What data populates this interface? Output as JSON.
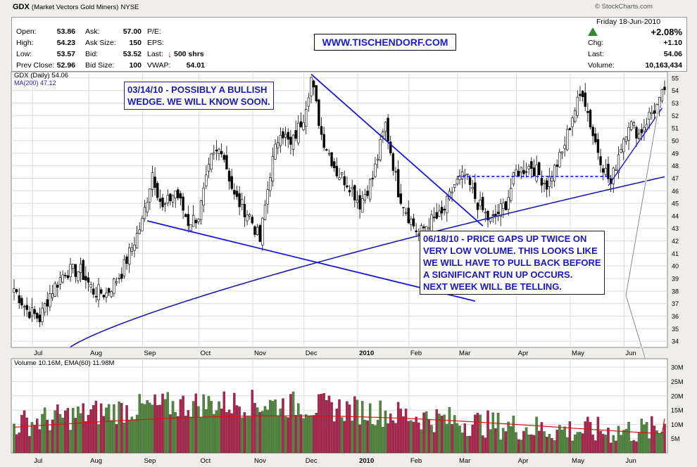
{
  "header": {
    "ticker": "GDX",
    "name": "(Market Vectors Gold Miners)",
    "exchange": "NYSE",
    "date": "Friday 18-Jun-2010",
    "watermark": "© StockCharts.com",
    "pct_change": "+2.08%",
    "quote": {
      "open_label": "Open:",
      "open": "53.86",
      "high_label": "High:",
      "high": "54.23",
      "low_label": "Low:",
      "low": "53.57",
      "prev_label": "Prev Close:",
      "prev": "52.96",
      "ask_label": "Ask:",
      "ask": "57.00",
      "asksize_label": "Ask Size:",
      "asksize": "150",
      "bid_label": "Bid:",
      "bid": "53.52",
      "bidsize_label": "Bid Size:",
      "bidsize": "100",
      "pe_label": "P/E:",
      "eps_label": "EPS:",
      "last_label": "Last:",
      "last_shrs": "500 shrs",
      "vwap_label": "VWAP:",
      "vwap": "54.01",
      "chg_label": "Chg:",
      "chg": "+1.10",
      "last2_label": "Last:",
      "last2": "54.06",
      "volume_label": "Volume:",
      "volume": "10,163,434"
    }
  },
  "url_box": "WWW.TISCHENDORF.COM",
  "notes": {
    "note1_line1": "03/14/10 - POSSIBLY A BULLISH",
    "note1_line2": "WEDGE. WE WILL KNOW SOON.",
    "note2_line1": "06/18/10 - PRICE GAPS UP TWICE ON",
    "note2_line2": "VERY LOW VOLUME. THIS LOOKS LIKE",
    "note2_line3": "WE WILL HAVE TO PULL BACK BEFORE",
    "note2_line4": "A SIGNIFICANT RUN UP OCCURS.",
    "note2_line5": "NEXT WEEK WILL BE TELLING."
  },
  "colors": {
    "background": "#efeee8",
    "plot_bg": "#ffffff",
    "grid": "#dcdcdc",
    "ma_line": "#1c1cb8",
    "trend_line": "#1515e6",
    "volume_up": "#4f8a3a",
    "volume_down": "#b3204c",
    "ema_line": "#e01010",
    "up_arrow": "#2e8b2e",
    "down_arrow": "#c00000"
  },
  "chart_data": [
    {
      "type": "candlestick",
      "title": "GDX (Daily) 54.06",
      "legend": [
        "MA(200) 47.12"
      ],
      "legend_placement": "top-left",
      "x_ticks": [
        "Jul",
        "Aug",
        "Sep",
        "Oct",
        "Nov",
        "Dec",
        "2010",
        "Feb",
        "Mar",
        "Apr",
        "May",
        "Jun"
      ],
      "ylim": [
        33.5,
        55.5
      ],
      "y_ticks": [
        34,
        35,
        36,
        37,
        38,
        39,
        40,
        41,
        42,
        43,
        44,
        45,
        46,
        47,
        48,
        49,
        50,
        51,
        52,
        53,
        54,
        55
      ],
      "grid": true,
      "approx_monthly_close": [
        {
          "month": "Jul 2009",
          "close": 38.5
        },
        {
          "month": "Aug 2009",
          "close": 38.0
        },
        {
          "month": "Sep 2009",
          "close": 46.5
        },
        {
          "month": "Oct 2009",
          "close": 45.0
        },
        {
          "month": "Nov 2009",
          "close": 50.5
        },
        {
          "month": "Dec 2009",
          "close": 46.3
        },
        {
          "month": "Jan 2010",
          "close": 43.5
        },
        {
          "month": "Feb 2010",
          "close": 44.8
        },
        {
          "month": "Mar 2010",
          "close": 44.5
        },
        {
          "month": "Apr 2010",
          "close": 49.0
        },
        {
          "month": "May 2010",
          "close": 50.0
        },
        {
          "month": "Jun 2010",
          "close": 54.06
        }
      ],
      "ma200_last": 47.12,
      "annotations": [
        "descending trendline from Dec 2009 high",
        "lower wedge line from Sep 2009",
        "dashed resistance near 47",
        "ascending support line into June 2010"
      ]
    },
    {
      "type": "bar",
      "title": "Volume 10.16M, EMA(60) 11.98M",
      "y_ticks": [
        "5M",
        "10M",
        "15M",
        "20M",
        "25M",
        "30M"
      ],
      "ylim": [
        0,
        33
      ],
      "unit": "M",
      "last_volume": 10.16,
      "ema60_last": 11.98,
      "x_ticks": [
        "Jul",
        "Aug",
        "Sep",
        "Oct",
        "Nov",
        "Dec",
        "2010",
        "Feb",
        "Mar",
        "Apr",
        "May",
        "Jun"
      ]
    }
  ]
}
